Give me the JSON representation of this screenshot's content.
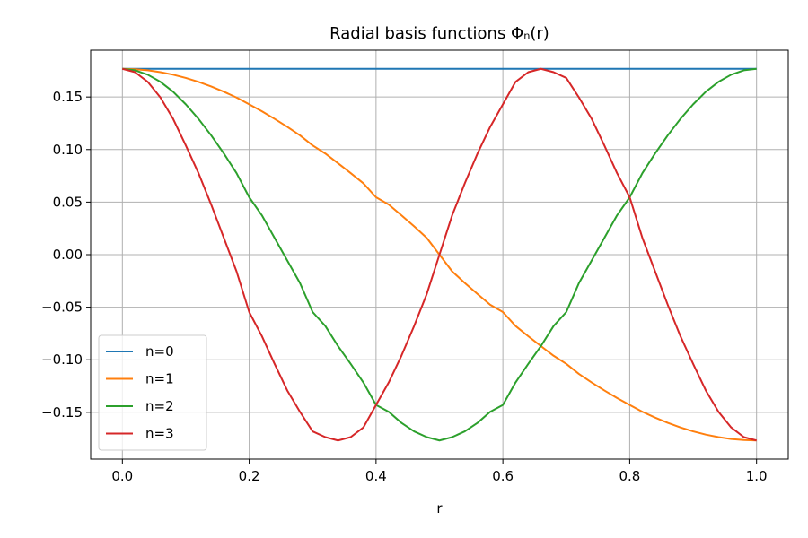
{
  "chart_data": {
    "type": "line",
    "title": "Radial basis functions  Φₙ(r)",
    "xlabel": "r",
    "ylabel": "",
    "xlim": [
      -0.05,
      1.05
    ],
    "ylim": [
      -0.1945,
      0.1945
    ],
    "xticks": [
      0.0,
      0.2,
      0.4,
      0.6,
      0.8,
      1.0
    ],
    "xtick_labels": [
      "0.0",
      "0.2",
      "0.4",
      "0.6",
      "0.8",
      "1.0"
    ],
    "yticks": [
      0.15,
      0.1,
      0.05,
      0.0,
      -0.05,
      -0.1,
      -0.15
    ],
    "ytick_labels": [
      "0.15",
      "0.10",
      "0.05",
      "0.00",
      "−0.05",
      "−0.10",
      "−0.15"
    ],
    "grid": true,
    "legend_position": "lower-left",
    "x": [
      0.0,
      0.02,
      0.04,
      0.06,
      0.08,
      0.1,
      0.12,
      0.14,
      0.16,
      0.18,
      0.2,
      0.22,
      0.24,
      0.26,
      0.28,
      0.3,
      0.32,
      0.34,
      0.36,
      0.38,
      0.4,
      0.42,
      0.44,
      0.46,
      0.48,
      0.5,
      0.52,
      0.54,
      0.56,
      0.58,
      0.6,
      0.62,
      0.64,
      0.66,
      0.68,
      0.7,
      0.72,
      0.74,
      0.76,
      0.78,
      0.8,
      0.82,
      0.84,
      0.86,
      0.88,
      0.9,
      0.92,
      0.94,
      0.96,
      0.98,
      1.0
    ],
    "series": [
      {
        "name": "n=0",
        "color": "#1f77b4",
        "values": [
          0.1768,
          0.1768,
          0.1768,
          0.1768,
          0.1768,
          0.1768,
          0.1768,
          0.1768,
          0.1768,
          0.1768,
          0.1768,
          0.1768,
          0.1768,
          0.1768,
          0.1768,
          0.1768,
          0.1768,
          0.1768,
          0.1768,
          0.1768,
          0.1768,
          0.1768,
          0.1768,
          0.1768,
          0.1768,
          0.1768,
          0.1768,
          0.1768,
          0.1768,
          0.1768,
          0.1768,
          0.1768,
          0.1768,
          0.1768,
          0.1768,
          0.1768,
          0.1768,
          0.1768,
          0.1768,
          0.1768,
          0.1768,
          0.1768,
          0.1768,
          0.1768,
          0.1768,
          0.1768,
          0.1768,
          0.1768,
          0.1768,
          0.1768,
          0.1768
        ]
      },
      {
        "name": "n=1",
        "color": "#ff7f0e",
        "values": [
          0.1768,
          0.1764,
          0.1754,
          0.1736,
          0.1712,
          0.1681,
          0.1644,
          0.16,
          0.155,
          0.1495,
          0.143,
          0.1364,
          0.1292,
          0.1216,
          0.1135,
          0.1039,
          0.0962,
          0.087,
          0.0776,
          0.0679,
          0.0546,
          0.0477,
          0.0374,
          0.027,
          0.0159,
          0.0,
          -0.0159,
          -0.027,
          -0.0374,
          -0.0477,
          -0.0546,
          -0.0679,
          -0.0776,
          -0.087,
          -0.0962,
          -0.1039,
          -0.1135,
          -0.1216,
          -0.1292,
          -0.1364,
          -0.143,
          -0.1495,
          -0.155,
          -0.16,
          -0.1644,
          -0.1681,
          -0.1712,
          -0.1736,
          -0.1754,
          -0.1764,
          -0.1768
        ]
      },
      {
        "name": "n=2",
        "color": "#2ca02c",
        "values": [
          0.1768,
          0.1754,
          0.1712,
          0.1644,
          0.155,
          0.143,
          0.1292,
          0.1135,
          0.0962,
          0.0776,
          0.0546,
          0.0374,
          0.0159,
          -0.0055,
          -0.027,
          -0.0546,
          -0.0679,
          -0.087,
          -0.1039,
          -0.1216,
          -0.143,
          -0.1495,
          -0.16,
          -0.1681,
          -0.1736,
          -0.1768,
          -0.1736,
          -0.1681,
          -0.16,
          -0.1495,
          -0.143,
          -0.1216,
          -0.1039,
          -0.087,
          -0.0679,
          -0.0546,
          -0.027,
          -0.0055,
          0.0159,
          0.0374,
          0.0546,
          0.0776,
          0.0962,
          0.1135,
          0.1292,
          0.143,
          0.155,
          0.1644,
          0.1712,
          0.1754,
          0.1768
        ]
      },
      {
        "name": "n=3",
        "color": "#d62728",
        "values": [
          0.1768,
          0.1736,
          0.1644,
          0.1495,
          0.1292,
          0.1039,
          0.0776,
          0.0477,
          0.0159,
          -0.0159,
          -0.0546,
          -0.0776,
          -0.1039,
          -0.1292,
          -0.1495,
          -0.1681,
          -0.1736,
          -0.1768,
          -0.1736,
          -0.1644,
          -0.143,
          -0.1216,
          -0.0962,
          -0.0679,
          -0.0374,
          0.0,
          0.0374,
          0.0679,
          0.0962,
          0.1216,
          0.143,
          0.1644,
          0.1736,
          0.1768,
          0.1736,
          0.1681,
          0.1495,
          0.1292,
          0.1039,
          0.0776,
          0.0546,
          0.0159,
          -0.0159,
          -0.0477,
          -0.0776,
          -0.1039,
          -0.1292,
          -0.1495,
          -0.1644,
          -0.1736,
          -0.1768
        ]
      }
    ]
  }
}
